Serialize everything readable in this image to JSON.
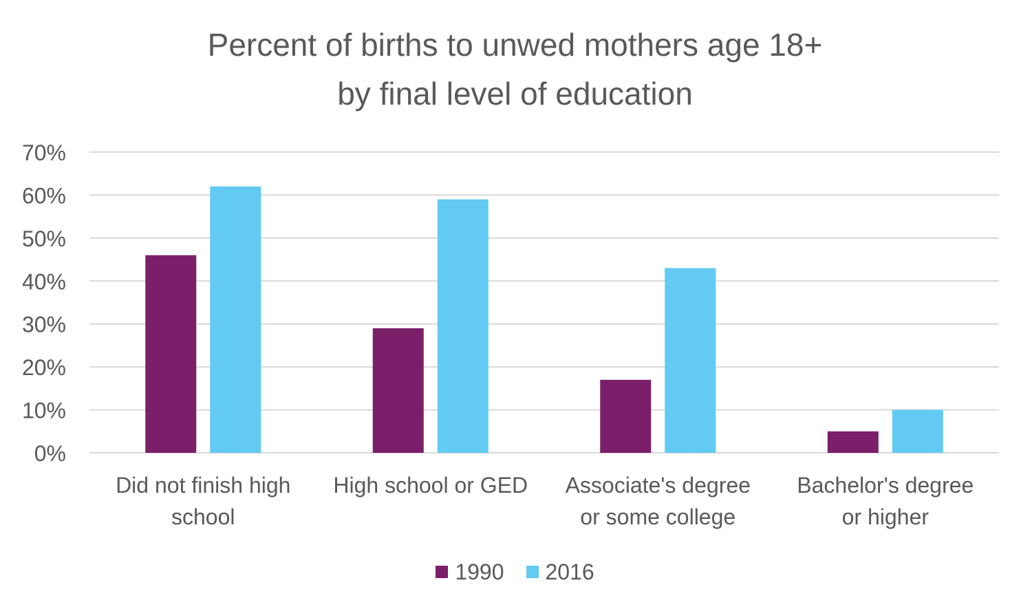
{
  "title_lines": [
    "Percent of births to unwed mothers age 18+",
    "by final level of education"
  ],
  "colors": {
    "series_1990": "#7B1F6A",
    "series_2016": "#62CAF3",
    "grid": "#D9D9D9",
    "text": "#595959"
  },
  "chart_data": {
    "type": "bar",
    "title": "Percent of births to unwed mothers age 18+ by final level of education",
    "categories": [
      [
        "Did not finish high",
        "school"
      ],
      [
        "High school or GED"
      ],
      [
        "Associate's degree",
        "or some college"
      ],
      [
        "Bachelor's degree",
        "or higher"
      ]
    ],
    "series": [
      {
        "name": "1990",
        "values": [
          46,
          29,
          17,
          5
        ]
      },
      {
        "name": "2016",
        "values": [
          62,
          59,
          43,
          10
        ]
      }
    ],
    "ylim": [
      0,
      70
    ],
    "yticks": [
      0,
      10,
      20,
      30,
      40,
      50,
      60,
      70
    ],
    "ytick_labels": [
      "0%",
      "10%",
      "20%",
      "30%",
      "40%",
      "50%",
      "60%",
      "70%"
    ],
    "grid": true,
    "legend_position": "bottom"
  }
}
